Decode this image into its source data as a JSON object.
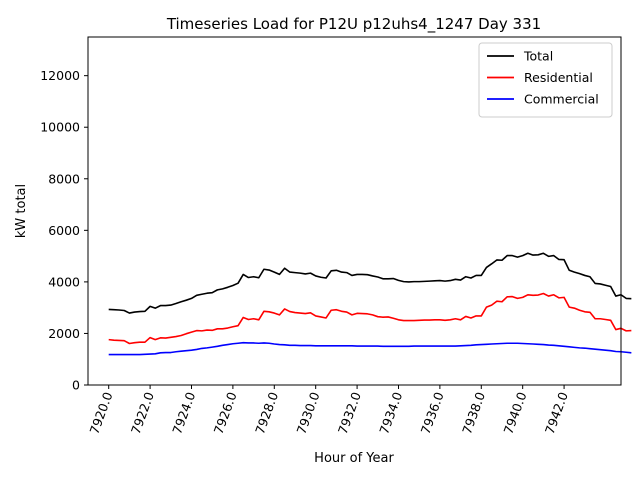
{
  "chart_data": {
    "type": "line",
    "title": "Timeseries Load for P12U p12uhs4_1247  Day 331",
    "xlabel": "Hour of Year",
    "ylabel": "kW total",
    "xlim": [
      7919.0,
      7944.75
    ],
    "ylim": [
      0,
      13500
    ],
    "xticks": [
      7920,
      7922,
      7924,
      7926,
      7928,
      7930,
      7932,
      7934,
      7936,
      7938,
      7940,
      7942
    ],
    "xtick_labels": [
      "7920.0",
      "7922.0",
      "7924.0",
      "7926.0",
      "7928.0",
      "7930.0",
      "7932.0",
      "7934.0",
      "7936.0",
      "7938.0",
      "7940.0",
      "7942.0"
    ],
    "yticks": [
      0,
      2000,
      4000,
      6000,
      8000,
      10000,
      12000
    ],
    "ytick_labels": [
      "0",
      "2000",
      "4000",
      "6000",
      "8000",
      "10000",
      "12000"
    ],
    "legend_position": "top-right",
    "x_start": 7920.0,
    "x_step": 0.25,
    "series": [
      {
        "name": "Total",
        "color": "#000000",
        "values": [
          2930,
          2920,
          2910,
          2890,
          2790,
          2830,
          2850,
          2860,
          3050,
          2980,
          3080,
          3080,
          3100,
          3160,
          3230,
          3290,
          3360,
          3480,
          3520,
          3560,
          3580,
          3690,
          3730,
          3790,
          3860,
          3950,
          4290,
          4170,
          4200,
          4160,
          4490,
          4460,
          4380,
          4290,
          4530,
          4380,
          4360,
          4340,
          4310,
          4340,
          4230,
          4180,
          4150,
          4430,
          4450,
          4380,
          4360,
          4250,
          4290,
          4290,
          4280,
          4230,
          4190,
          4120,
          4120,
          4130,
          4060,
          4010,
          4000,
          4010,
          4010,
          4020,
          4030,
          4040,
          4050,
          4030,
          4050,
          4100,
          4070,
          4200,
          4150,
          4250,
          4250,
          4560,
          4700,
          4850,
          4840,
          5020,
          5020,
          4960,
          5020,
          5110,
          5040,
          5050,
          5110,
          4990,
          5020,
          4870,
          4860,
          4450,
          4380,
          4320,
          4250,
          4200,
          3940,
          3920,
          3870,
          3820,
          3450,
          3500,
          3360,
          3350
        ]
      },
      {
        "name": "Residential",
        "color": "#ff0000",
        "values": [
          1760,
          1740,
          1730,
          1720,
          1610,
          1640,
          1660,
          1660,
          1840,
          1760,
          1830,
          1820,
          1850,
          1880,
          1920,
          1990,
          2050,
          2110,
          2100,
          2130,
          2120,
          2180,
          2180,
          2210,
          2260,
          2300,
          2620,
          2540,
          2570,
          2530,
          2860,
          2840,
          2790,
          2720,
          2950,
          2850,
          2810,
          2790,
          2770,
          2800,
          2680,
          2640,
          2600,
          2900,
          2920,
          2860,
          2830,
          2720,
          2780,
          2770,
          2760,
          2720,
          2650,
          2630,
          2640,
          2590,
          2530,
          2500,
          2500,
          2500,
          2510,
          2520,
          2520,
          2530,
          2530,
          2510,
          2530,
          2570,
          2530,
          2660,
          2600,
          2680,
          2680,
          3020,
          3100,
          3250,
          3230,
          3420,
          3430,
          3360,
          3400,
          3500,
          3480,
          3490,
          3550,
          3450,
          3500,
          3380,
          3400,
          3020,
          2980,
          2900,
          2840,
          2820,
          2570,
          2570,
          2540,
          2510,
          2150,
          2200,
          2100,
          2110
        ]
      },
      {
        "name": "Commercial",
        "color": "#0000ff",
        "values": [
          1180,
          1180,
          1180,
          1180,
          1180,
          1180,
          1180,
          1190,
          1200,
          1210,
          1250,
          1260,
          1260,
          1290,
          1310,
          1330,
          1350,
          1380,
          1420,
          1440,
          1470,
          1500,
          1540,
          1570,
          1600,
          1620,
          1640,
          1630,
          1630,
          1620,
          1630,
          1620,
          1590,
          1570,
          1560,
          1540,
          1540,
          1530,
          1530,
          1530,
          1520,
          1520,
          1520,
          1520,
          1520,
          1520,
          1520,
          1520,
          1510,
          1510,
          1510,
          1510,
          1510,
          1500,
          1500,
          1500,
          1500,
          1500,
          1500,
          1510,
          1510,
          1510,
          1510,
          1510,
          1510,
          1510,
          1510,
          1510,
          1520,
          1530,
          1540,
          1560,
          1570,
          1580,
          1590,
          1600,
          1610,
          1620,
          1620,
          1620,
          1610,
          1600,
          1590,
          1580,
          1570,
          1550,
          1540,
          1520,
          1500,
          1480,
          1460,
          1440,
          1430,
          1410,
          1390,
          1370,
          1350,
          1330,
          1300,
          1290,
          1270,
          1250
        ]
      }
    ]
  }
}
